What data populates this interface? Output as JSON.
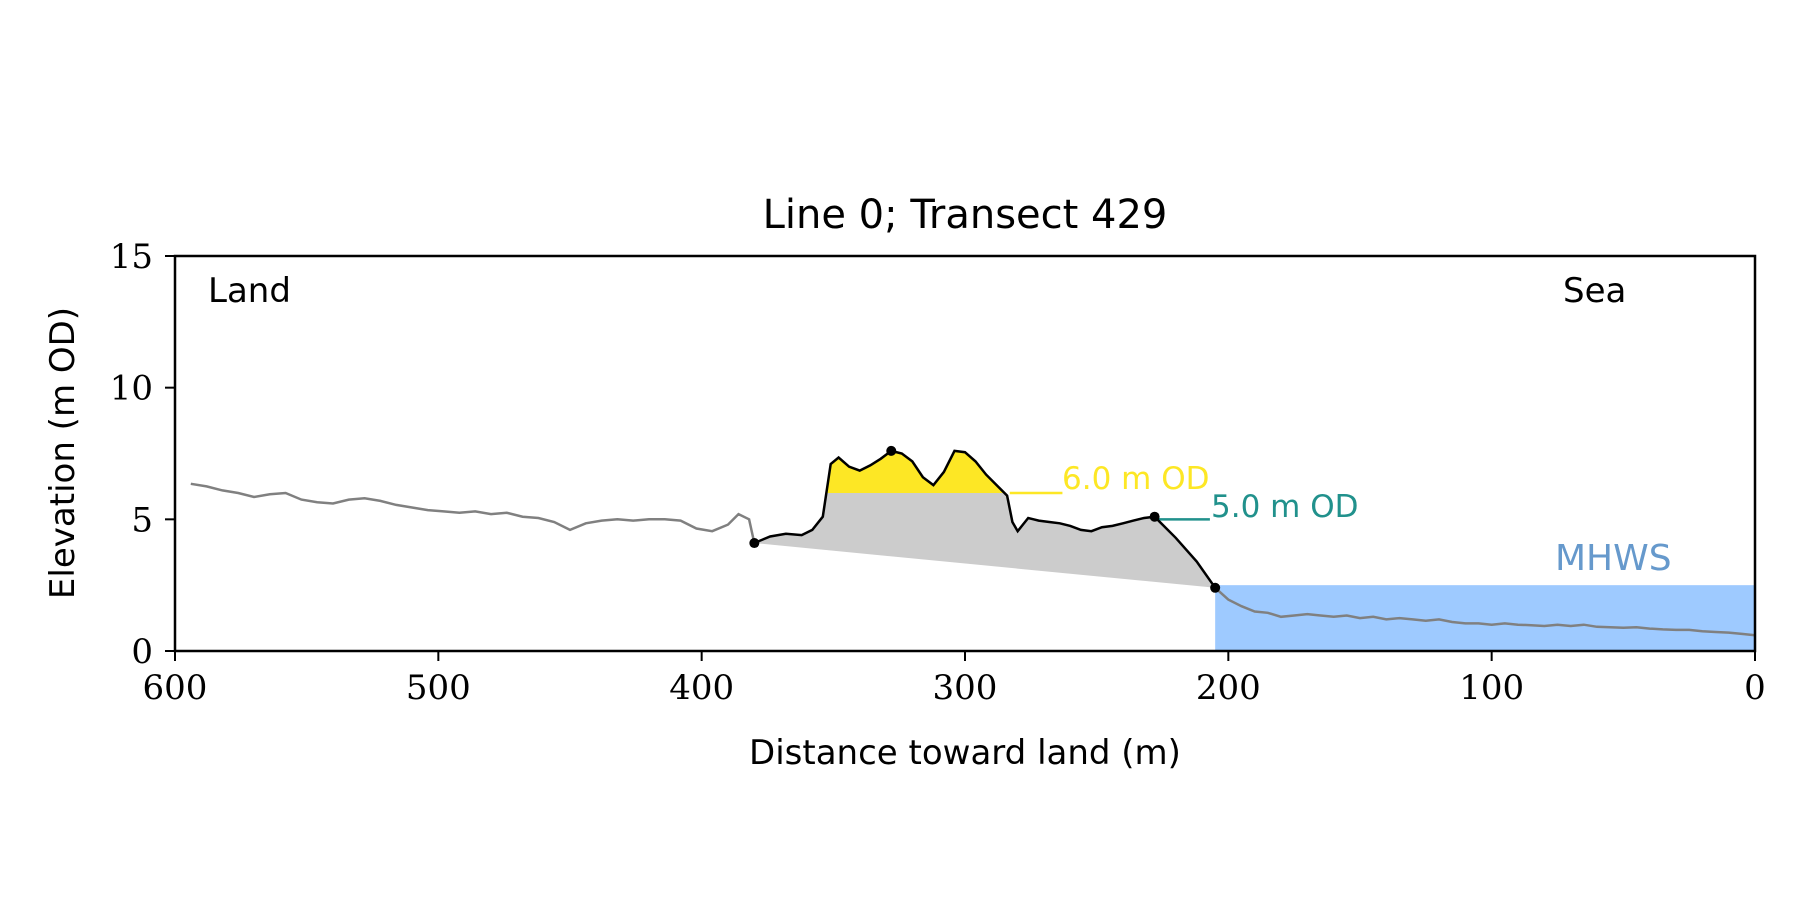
{
  "chart_data": {
    "type": "area",
    "title": "Line 0; Transect 429",
    "xlabel": "Distance toward land (m)",
    "ylabel": "Elevation (m OD)",
    "xlim": [
      600,
      0
    ],
    "ylim": [
      0,
      15
    ],
    "x_ticks": [
      "600",
      "500",
      "400",
      "300",
      "200",
      "100",
      "0"
    ],
    "y_ticks": [
      "0",
      "5",
      "10",
      "15"
    ],
    "grid": false,
    "corner_labels": {
      "land": "Land",
      "sea": "Sea"
    },
    "colors": {
      "profile": "#808080",
      "dune": "#000000",
      "above_6m_fill": "#FDE725",
      "dune_volume_fill": "#CCCCCC",
      "level_5m": "#21918C",
      "mhws_fill": "#9ECAFF",
      "mhws_label": "#6699CC"
    },
    "reference_levels": [
      {
        "label": "6.0 m OD",
        "elevation": 6.0
      },
      {
        "label": "5.0 m OD",
        "elevation": 5.0
      }
    ],
    "mhws": {
      "label": "MHWS",
      "elevation": 2.5,
      "x_from": 205,
      "x_to": 0
    },
    "dune_points": [
      {
        "x": 380,
        "y": 4.1
      },
      {
        "x": 328,
        "y": 7.6
      },
      {
        "x": 228,
        "y": 5.1
      },
      {
        "x": 205,
        "y": 2.4
      }
    ],
    "series": [
      {
        "x": [
          594,
          588,
          582,
          576,
          570,
          564,
          558,
          552,
          546,
          540,
          534,
          528,
          522,
          516,
          510,
          504,
          498,
          492,
          486,
          480,
          474,
          468,
          462,
          456,
          450,
          444,
          438,
          432,
          426,
          420,
          414,
          408,
          402,
          396,
          390,
          386,
          382,
          380
        ],
        "y": [
          6.35,
          6.25,
          6.1,
          6.0,
          5.85,
          5.95,
          6.0,
          5.75,
          5.65,
          5.6,
          5.75,
          5.8,
          5.7,
          5.55,
          5.45,
          5.35,
          5.3,
          5.25,
          5.3,
          5.2,
          5.25,
          5.1,
          5.05,
          4.9,
          4.6,
          4.85,
          4.95,
          5.0,
          4.95,
          5.0,
          5.0,
          4.95,
          4.65,
          4.55,
          4.8,
          5.2,
          5.0,
          4.1
        ]
      },
      {
        "x": [
          380,
          374,
          368,
          362,
          358,
          354,
          351,
          348,
          344,
          340,
          336,
          332,
          328,
          324,
          320,
          316,
          312,
          308,
          304,
          300,
          296,
          292,
          288,
          284,
          282,
          280,
          278,
          276,
          274,
          272,
          268,
          264,
          260,
          256,
          252,
          248,
          244,
          240,
          236,
          232,
          228,
          220,
          212,
          205
        ],
        "y": [
          4.1,
          4.35,
          4.45,
          4.4,
          4.6,
          5.1,
          7.1,
          7.35,
          7.0,
          6.85,
          7.05,
          7.3,
          7.6,
          7.5,
          7.2,
          6.6,
          6.3,
          6.8,
          7.6,
          7.55,
          7.2,
          6.7,
          6.3,
          5.9,
          4.9,
          4.55,
          4.8,
          5.05,
          5.0,
          4.95,
          4.9,
          4.85,
          4.75,
          4.6,
          4.55,
          4.7,
          4.75,
          4.85,
          4.95,
          5.05,
          5.1,
          4.3,
          3.4,
          2.4
        ]
      },
      {
        "x": [
          205,
          200,
          195,
          190,
          185,
          180,
          175,
          170,
          165,
          160,
          155,
          150,
          145,
          140,
          135,
          130,
          125,
          120,
          115,
          110,
          105,
          100,
          95,
          90,
          85,
          80,
          75,
          70,
          65,
          60,
          55,
          50,
          45,
          40,
          35,
          30,
          25,
          20,
          15,
          10,
          5,
          0
        ],
        "y": [
          2.4,
          1.95,
          1.7,
          1.5,
          1.45,
          1.3,
          1.35,
          1.4,
          1.35,
          1.3,
          1.35,
          1.25,
          1.3,
          1.2,
          1.25,
          1.2,
          1.15,
          1.2,
          1.1,
          1.05,
          1.05,
          1.0,
          1.05,
          1.0,
          0.98,
          0.95,
          1.0,
          0.95,
          1.0,
          0.92,
          0.9,
          0.88,
          0.9,
          0.85,
          0.82,
          0.8,
          0.8,
          0.75,
          0.72,
          0.7,
          0.65,
          0.6
        ]
      }
    ]
  }
}
